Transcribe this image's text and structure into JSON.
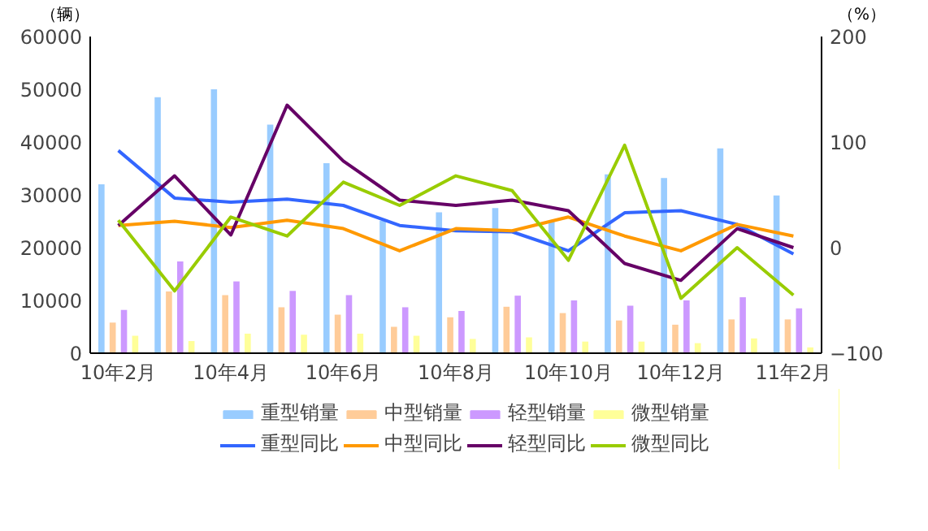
{
  "chart_data": {
    "type": "bar",
    "ylabel": "（辆）",
    "y2label": "（%）",
    "categories": [
      "10年2月",
      null,
      "10年4月",
      null,
      "10年6月",
      null,
      "10年8月",
      null,
      "10年10月",
      null,
      "10年12月",
      null,
      "11年2月"
    ],
    "series": [
      {
        "name": "重型销量",
        "color": "#99ccff",
        "values": [
          32000,
          48500,
          50000,
          43300,
          36000,
          25100,
          26700,
          27500,
          25100,
          33900,
          33200,
          38800,
          29900
        ]
      },
      {
        "name": "中型销量",
        "color": "#ffcc99",
        "values": [
          5800,
          11700,
          11000,
          8700,
          7300,
          5000,
          6800,
          8800,
          7600,
          6200,
          5400,
          6400,
          6400
        ]
      },
      {
        "name": "轻型销量",
        "color": "#cc99ff",
        "values": [
          8200,
          17400,
          13600,
          11800,
          11000,
          8700,
          8000,
          10900,
          10000,
          9000,
          10000,
          10600,
          8500
        ]
      },
      {
        "name": "微型销量",
        "color": "#ffff99",
        "values": [
          3300,
          2300,
          3700,
          3500,
          3700,
          3300,
          2700,
          3000,
          2200,
          2200,
          1900,
          2800,
          1100
        ]
      },
      {
        "name": "重型同比",
        "type": "line",
        "axis": "y2",
        "color": "#3366ff",
        "values": [
          92,
          47,
          43,
          46,
          40,
          21,
          16,
          15,
          -3,
          33,
          35,
          22,
          -6
        ]
      },
      {
        "name": "中型同比",
        "type": "line",
        "axis": "y2",
        "color": "#ff9900",
        "values": [
          21,
          25,
          19,
          26,
          18,
          -3,
          18,
          16,
          29,
          11,
          -3,
          22,
          11
        ]
      },
      {
        "name": "轻型同比",
        "type": "line",
        "axis": "y2",
        "color": "#660066",
        "values": [
          21,
          68,
          12,
          135,
          82,
          45,
          40,
          45,
          35,
          -15,
          -31,
          18,
          0
        ]
      },
      {
        "name": "微型同比",
        "type": "line",
        "axis": "y2",
        "color": "#99cc00",
        "values": [
          26,
          -41,
          29,
          11,
          62,
          40,
          68,
          54,
          -12,
          97,
          -48,
          0,
          -45
        ]
      }
    ],
    "ylim": [
      0,
      60000
    ],
    "yticks": [
      0,
      10000,
      20000,
      30000,
      40000,
      50000,
      60000
    ],
    "y2lim": [
      -100,
      200
    ],
    "y2ticks": [
      -100,
      0,
      100,
      200
    ],
    "grid": false,
    "legend": "bottom",
    "line_style": "solid",
    "marker": "none"
  }
}
